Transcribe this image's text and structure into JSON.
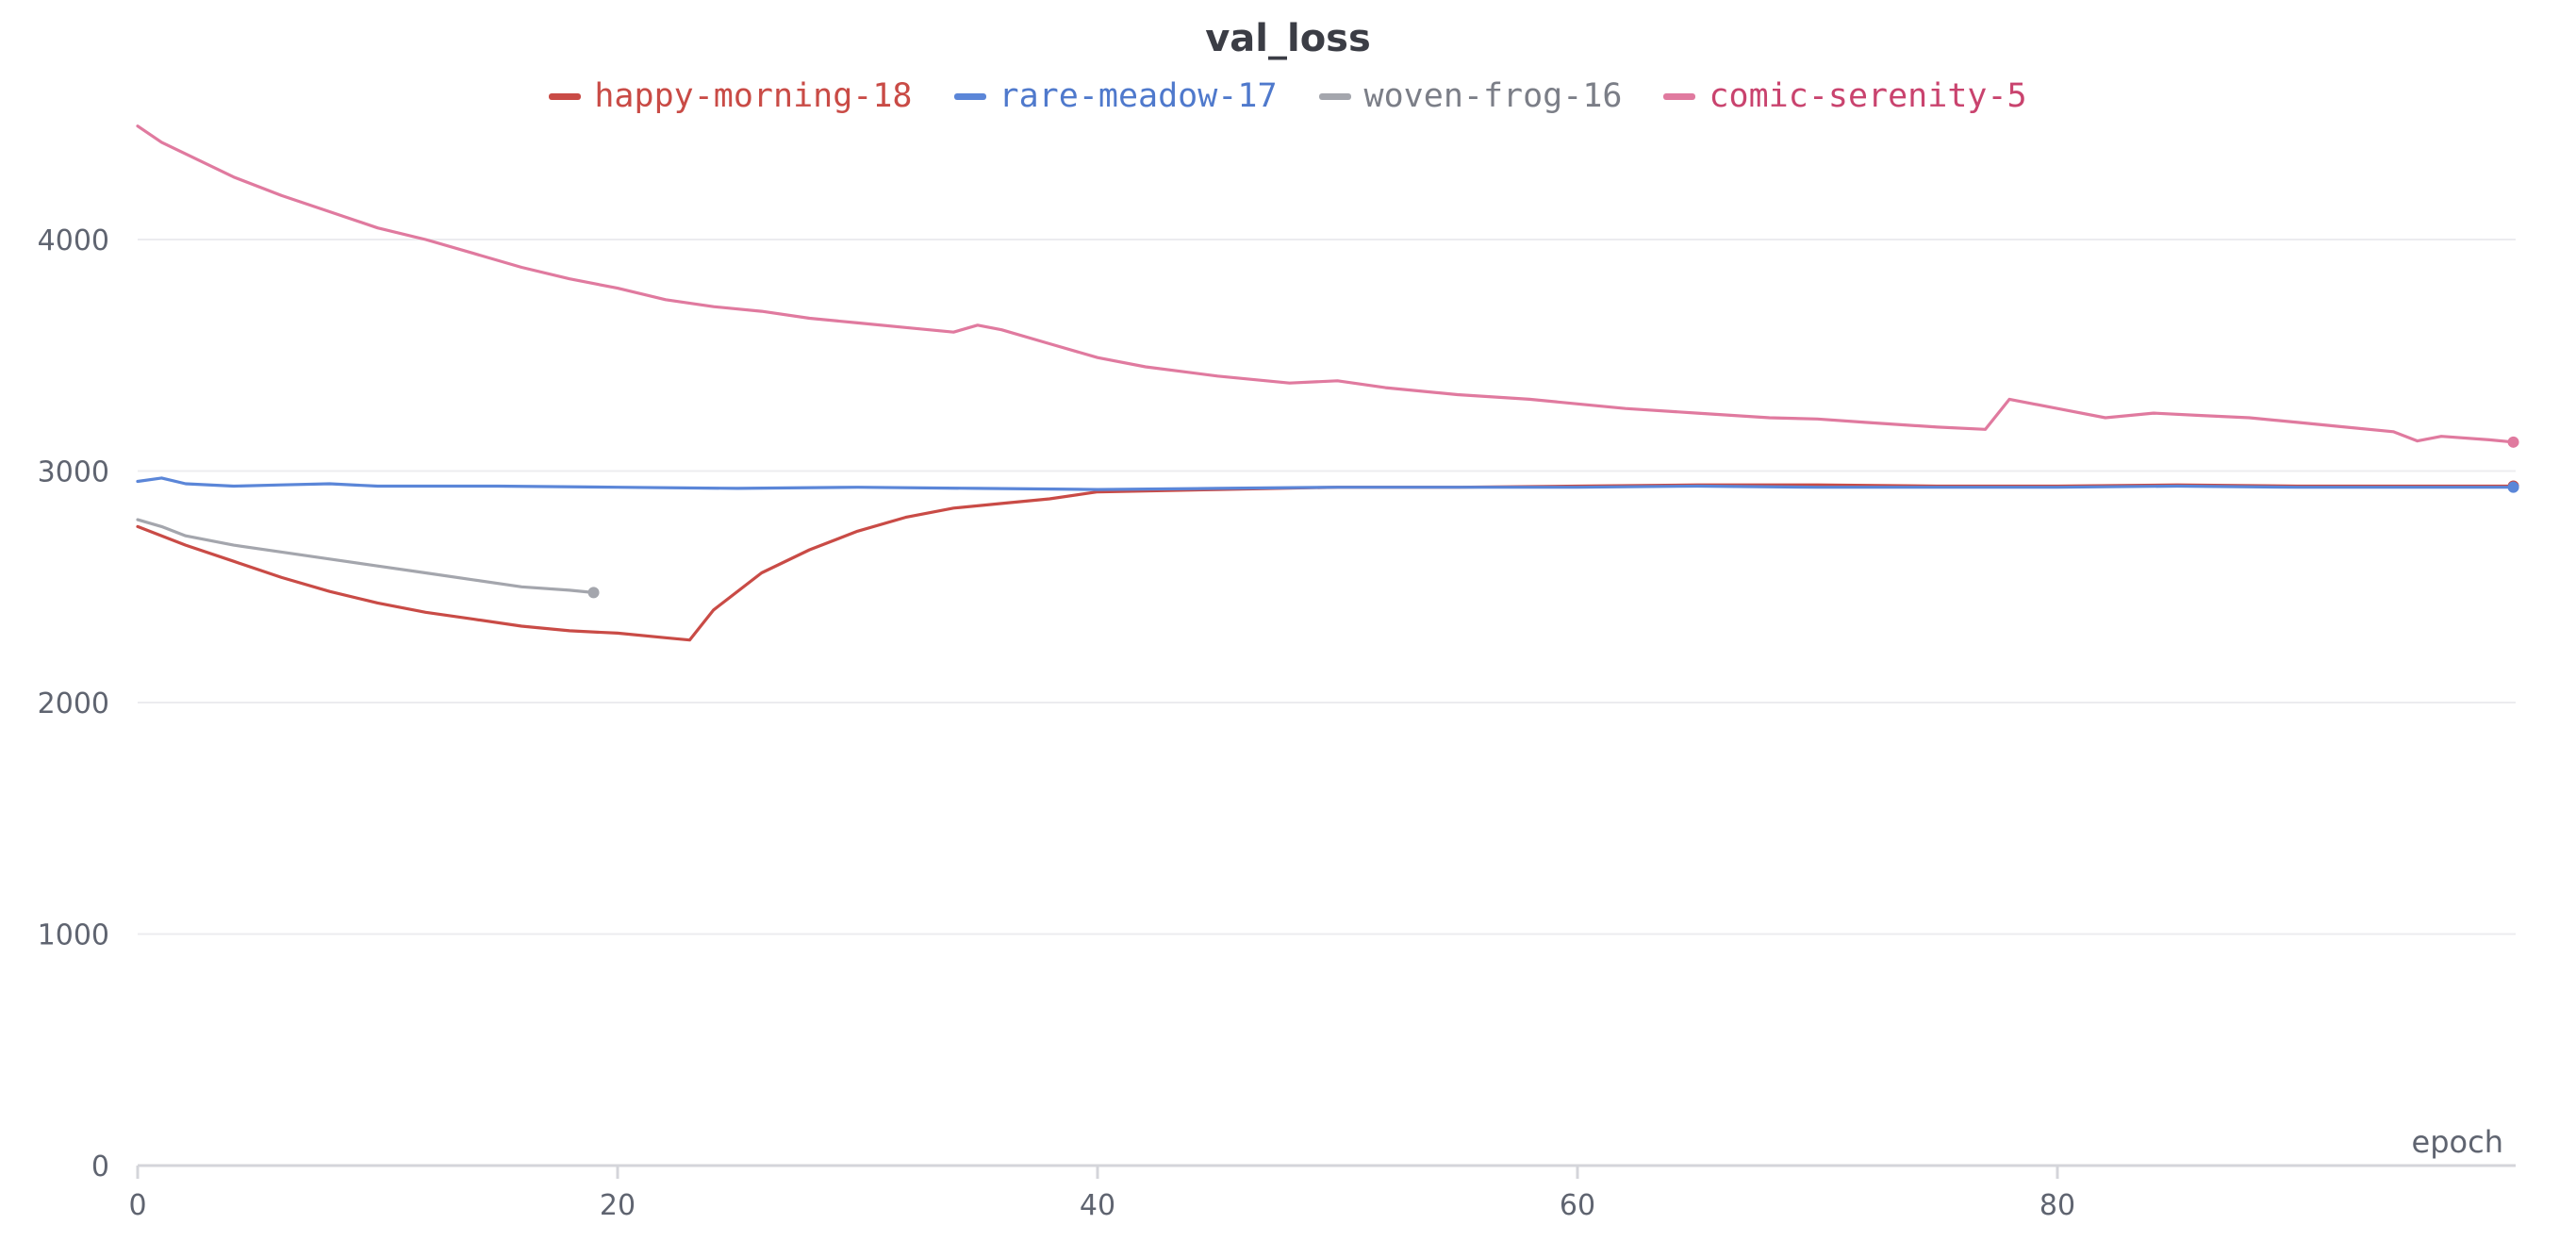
{
  "chart_data": {
    "type": "line",
    "title": "val_loss",
    "xlabel": "epoch",
    "ylabel": "",
    "xlim": [
      0,
      99
    ],
    "ylim": [
      0,
      4600
    ],
    "xticks": [
      0,
      20,
      40,
      60,
      80
    ],
    "yticks": [
      0,
      1000,
      2000,
      3000,
      4000
    ],
    "grid": true,
    "legend_position": "top-center",
    "series": [
      {
        "name": "happy-morning-18",
        "color": "#c94b46",
        "x": [
          0,
          2,
          4,
          6,
          8,
          10,
          12,
          14,
          16,
          18,
          20,
          22,
          23,
          24,
          26,
          28,
          30,
          32,
          34,
          36,
          38,
          40,
          45,
          50,
          55,
          60,
          65,
          70,
          75,
          80,
          85,
          90,
          95,
          99
        ],
        "values": [
          2760,
          2680,
          2610,
          2540,
          2480,
          2430,
          2390,
          2360,
          2330,
          2310,
          2300,
          2280,
          2270,
          2400,
          2560,
          2660,
          2740,
          2800,
          2840,
          2860,
          2880,
          2910,
          2920,
          2930,
          2930,
          2935,
          2940,
          2940,
          2935,
          2935,
          2940,
          2935,
          2935,
          2935
        ]
      },
      {
        "name": "rare-meadow-17",
        "color": "#5b86d8",
        "x": [
          0,
          1,
          2,
          4,
          6,
          8,
          10,
          15,
          20,
          25,
          30,
          35,
          40,
          45,
          50,
          55,
          60,
          65,
          70,
          75,
          80,
          85,
          90,
          95,
          99
        ],
        "values": [
          2955,
          2970,
          2945,
          2935,
          2940,
          2945,
          2935,
          2935,
          2930,
          2925,
          2930,
          2925,
          2920,
          2925,
          2930,
          2930,
          2930,
          2935,
          2930,
          2930,
          2930,
          2935,
          2930,
          2930,
          2930
        ]
      },
      {
        "name": "woven-frog-16",
        "color": "#a4a6ad",
        "x": [
          0,
          1,
          2,
          4,
          6,
          8,
          10,
          12,
          14,
          16,
          18,
          19
        ],
        "values": [
          2790,
          2760,
          2720,
          2680,
          2650,
          2620,
          2590,
          2560,
          2530,
          2500,
          2485,
          2475
        ]
      },
      {
        "name": "comic-serenity-5",
        "color": "#e07a9f",
        "x": [
          0,
          1,
          2,
          4,
          6,
          8,
          10,
          12,
          14,
          16,
          18,
          20,
          22,
          24,
          26,
          28,
          30,
          32,
          34,
          35,
          36,
          38,
          40,
          42,
          45,
          48,
          50,
          52,
          55,
          58,
          60,
          62,
          65,
          68,
          70,
          72,
          75,
          77,
          78,
          80,
          82,
          84,
          86,
          88,
          90,
          92,
          94,
          95,
          96,
          98,
          99
        ],
        "values": [
          4490,
          4420,
          4370,
          4270,
          4190,
          4120,
          4050,
          4000,
          3940,
          3880,
          3830,
          3790,
          3740,
          3710,
          3690,
          3660,
          3640,
          3620,
          3600,
          3630,
          3610,
          3550,
          3490,
          3450,
          3410,
          3380,
          3390,
          3360,
          3330,
          3310,
          3290,
          3270,
          3250,
          3230,
          3225,
          3210,
          3190,
          3180,
          3310,
          3270,
          3230,
          3250,
          3240,
          3230,
          3210,
          3190,
          3170,
          3130,
          3150,
          3135,
          3125
        ]
      }
    ]
  }
}
